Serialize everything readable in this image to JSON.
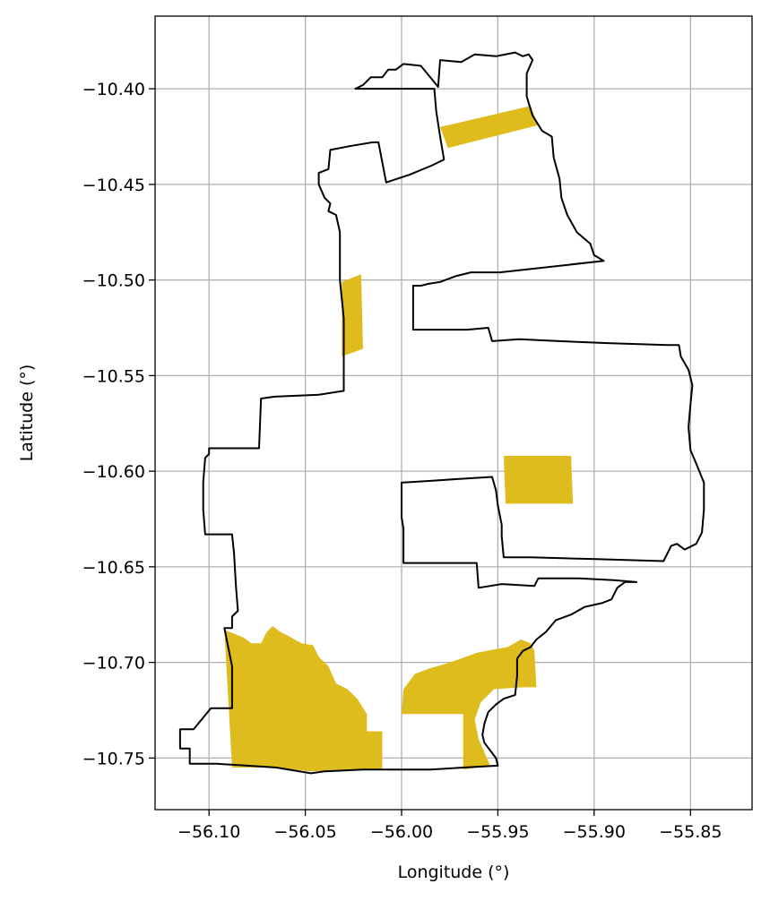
{
  "chart_data": {
    "type": "map",
    "title": "",
    "xlabel": "Longitude (°)",
    "ylabel": "Latitude (°)",
    "xlim": [
      -56.128,
      -55.818
    ],
    "ylim": [
      -10.777,
      -10.362
    ],
    "x_ticks": [
      -56.1,
      -56.05,
      -56.0,
      -55.95,
      -55.9,
      -55.85
    ],
    "x_tick_labels": [
      "−56.10",
      "−56.05",
      "−56.00",
      "−55.95",
      "−55.90",
      "−55.85"
    ],
    "y_ticks": [
      -10.4,
      -10.45,
      -10.5,
      -10.55,
      -10.6,
      -10.65,
      -10.7,
      -10.75
    ],
    "y_tick_labels": [
      "−10.40",
      "−10.45",
      "−10.50",
      "−10.55",
      "−10.60",
      "−10.65",
      "−10.70",
      "−10.75"
    ],
    "grid": true,
    "colors": {
      "fill": "#dfbc1e",
      "boundary": "#000000",
      "grid": "#b0b0b0"
    },
    "boundary": [
      [
        -55.981,
        -10.399
      ],
      [
        -55.98,
        -10.385
      ],
      [
        -55.969,
        -10.386
      ],
      [
        -55.962,
        -10.382
      ],
      [
        -55.951,
        -10.383
      ],
      [
        -55.941,
        -10.381
      ],
      [
        -55.937,
        -10.383
      ],
      [
        -55.934,
        -10.382
      ],
      [
        -55.932,
        -10.385
      ],
      [
        -55.935,
        -10.392
      ],
      [
        -55.935,
        -10.404
      ],
      [
        -55.932,
        -10.414
      ],
      [
        -55.927,
        -10.422
      ],
      [
        -55.922,
        -10.425
      ],
      [
        -55.921,
        -10.436
      ],
      [
        -55.918,
        -10.447
      ],
      [
        -55.917,
        -10.457
      ],
      [
        -55.914,
        -10.466
      ],
      [
        -55.909,
        -10.475
      ],
      [
        -55.902,
        -10.481
      ],
      [
        -55.9,
        -10.487
      ],
      [
        -55.895,
        -10.49
      ],
      [
        -55.949,
        -10.496
      ],
      [
        -55.964,
        -10.496
      ],
      [
        -55.972,
        -10.498
      ],
      [
        -55.98,
        -10.501
      ],
      [
        -55.986,
        -10.502
      ],
      [
        -55.99,
        -10.503
      ],
      [
        -55.994,
        -10.503
      ],
      [
        -55.994,
        -10.526
      ],
      [
        -55.966,
        -10.526
      ],
      [
        -55.955,
        -10.525
      ],
      [
        -55.953,
        -10.532
      ],
      [
        -55.939,
        -10.531
      ],
      [
        -55.918,
        -10.532
      ],
      [
        -55.893,
        -10.533
      ],
      [
        -55.862,
        -10.534
      ],
      [
        -55.856,
        -10.534
      ],
      [
        -55.855,
        -10.54
      ],
      [
        -55.851,
        -10.547
      ],
      [
        -55.849,
        -10.555
      ],
      [
        -55.85,
        -10.565
      ],
      [
        -55.851,
        -10.577
      ],
      [
        -55.85,
        -10.589
      ],
      [
        -55.847,
        -10.596
      ],
      [
        -55.843,
        -10.606
      ],
      [
        -55.843,
        -10.62
      ],
      [
        -55.844,
        -10.632
      ],
      [
        -55.847,
        -10.638
      ],
      [
        -55.853,
        -10.641
      ],
      [
        -55.857,
        -10.638
      ],
      [
        -55.86,
        -10.639
      ],
      [
        -55.864,
        -10.647
      ],
      [
        -55.899,
        -10.646
      ],
      [
        -55.933,
        -10.645
      ],
      [
        -55.947,
        -10.645
      ],
      [
        -55.948,
        -10.634
      ],
      [
        -55.948,
        -10.628
      ],
      [
        -55.95,
        -10.618
      ],
      [
        -55.951,
        -10.61
      ],
      [
        -55.953,
        -10.603
      ],
      [
        -55.97,
        -10.604
      ],
      [
        -55.984,
        -10.605
      ],
      [
        -56.0,
        -10.606
      ],
      [
        -56.0,
        -10.624
      ],
      [
        -55.999,
        -10.63
      ],
      [
        -55.999,
        -10.648
      ],
      [
        -55.961,
        -10.648
      ],
      [
        -55.96,
        -10.661
      ],
      [
        -55.948,
        -10.659
      ],
      [
        -55.931,
        -10.66
      ],
      [
        -55.929,
        -10.656
      ],
      [
        -55.908,
        -10.656
      ],
      [
        -55.89,
        -10.657
      ],
      [
        -55.878,
        -10.658
      ],
      [
        -55.884,
        -10.658
      ],
      [
        -55.888,
        -10.661
      ],
      [
        -55.891,
        -10.667
      ],
      [
        -55.896,
        -10.669
      ],
      [
        -55.905,
        -10.671
      ],
      [
        -55.912,
        -10.675
      ],
      [
        -55.92,
        -10.678
      ],
      [
        -55.925,
        -10.684
      ],
      [
        -55.93,
        -10.688
      ],
      [
        -55.933,
        -10.692
      ],
      [
        -55.937,
        -10.694
      ],
      [
        -55.94,
        -10.698
      ],
      [
        -55.94,
        -10.707
      ],
      [
        -55.941,
        -10.717
      ],
      [
        -55.947,
        -10.719
      ],
      [
        -55.951,
        -10.722
      ],
      [
        -55.955,
        -10.726
      ],
      [
        -55.957,
        -10.732
      ],
      [
        -55.958,
        -10.738
      ],
      [
        -55.957,
        -10.742
      ],
      [
        -55.954,
        -10.746
      ],
      [
        -55.951,
        -10.75
      ],
      [
        -55.95,
        -10.754
      ],
      [
        -55.968,
        -10.755
      ],
      [
        -55.985,
        -10.756
      ],
      [
        -56.002,
        -10.756
      ],
      [
        -56.02,
        -10.756
      ],
      [
        -56.04,
        -10.757
      ],
      [
        -56.047,
        -10.758
      ],
      [
        -56.065,
        -10.755
      ],
      [
        -56.08,
        -10.754
      ],
      [
        -56.096,
        -10.753
      ],
      [
        -56.11,
        -10.753
      ],
      [
        -56.11,
        -10.745
      ],
      [
        -56.115,
        -10.745
      ],
      [
        -56.115,
        -10.735
      ],
      [
        -56.108,
        -10.735
      ],
      [
        -56.099,
        -10.724
      ],
      [
        -56.088,
        -10.724
      ],
      [
        -56.088,
        -10.702
      ],
      [
        -56.092,
        -10.682
      ],
      [
        -56.088,
        -10.682
      ],
      [
        -56.088,
        -10.676
      ],
      [
        -56.085,
        -10.673
      ],
      [
        -56.086,
        -10.66
      ],
      [
        -56.087,
        -10.643
      ],
      [
        -56.088,
        -10.633
      ],
      [
        -56.096,
        -10.633
      ],
      [
        -56.102,
        -10.633
      ],
      [
        -56.103,
        -10.62
      ],
      [
        -56.103,
        -10.606
      ],
      [
        -56.102,
        -10.593
      ],
      [
        -56.1,
        -10.591
      ],
      [
        -56.1,
        -10.588
      ],
      [
        -56.074,
        -10.588
      ],
      [
        -56.073,
        -10.562
      ],
      [
        -56.066,
        -10.561
      ],
      [
        -56.043,
        -10.56
      ],
      [
        -56.03,
        -10.558
      ],
      [
        -56.03,
        -10.54
      ],
      [
        -56.03,
        -10.52
      ],
      [
        -56.032,
        -10.5
      ],
      [
        -56.032,
        -10.475
      ],
      [
        -56.034,
        -10.466
      ],
      [
        -56.038,
        -10.464
      ],
      [
        -56.037,
        -10.46
      ],
      [
        -56.04,
        -10.457
      ],
      [
        -56.043,
        -10.45
      ],
      [
        -56.043,
        -10.444
      ],
      [
        -56.038,
        -10.442
      ],
      [
        -56.037,
        -10.432
      ],
      [
        -56.027,
        -10.43
      ],
      [
        -56.015,
        -10.428
      ],
      [
        -56.012,
        -10.428
      ],
      [
        -56.008,
        -10.449
      ],
      [
        -55.996,
        -10.445
      ],
      [
        -55.984,
        -10.44
      ],
      [
        -55.978,
        -10.437
      ],
      [
        -55.98,
        -10.425
      ],
      [
        -55.982,
        -10.412
      ],
      [
        -55.983,
        -10.4
      ],
      [
        -56.0,
        -10.4
      ],
      [
        -56.01,
        -10.4
      ],
      [
        -56.018,
        -10.4
      ],
      [
        -56.024,
        -10.4
      ],
      [
        -56.02,
        -10.398
      ],
      [
        -56.016,
        -10.394
      ],
      [
        -56.01,
        -10.394
      ],
      [
        -56.007,
        -10.39
      ],
      [
        -56.003,
        -10.39
      ],
      [
        -55.999,
        -10.387
      ],
      [
        -55.99,
        -10.388
      ],
      [
        -55.981,
        -10.399
      ]
    ],
    "shaded_regions": [
      {
        "name": "northern-band",
        "coords": [
          [
            -55.98,
            -10.42
          ],
          [
            -55.933,
            -10.409
          ],
          [
            -55.929,
            -10.419
          ],
          [
            -55.976,
            -10.431
          ]
        ]
      },
      {
        "name": "western-strip",
        "coords": [
          [
            -56.031,
            -10.501
          ],
          [
            -56.021,
            -10.497
          ],
          [
            -56.02,
            -10.536
          ],
          [
            -56.031,
            -10.54
          ]
        ]
      },
      {
        "name": "eastern-block",
        "coords": [
          [
            -55.947,
            -10.592
          ],
          [
            -55.912,
            -10.592
          ],
          [
            -55.911,
            -10.617
          ],
          [
            -55.946,
            -10.617
          ]
        ]
      },
      {
        "name": "southwest-cluster",
        "coords": [
          [
            -56.092,
            -10.683
          ],
          [
            -56.082,
            -10.687
          ],
          [
            -56.078,
            -10.69
          ],
          [
            -56.073,
            -10.69
          ],
          [
            -56.07,
            -10.684
          ],
          [
            -56.067,
            -10.681
          ],
          [
            -56.063,
            -10.684
          ],
          [
            -56.059,
            -10.686
          ],
          [
            -56.052,
            -10.69
          ],
          [
            -56.046,
            -10.691
          ],
          [
            -56.043,
            -10.697
          ],
          [
            -56.038,
            -10.702
          ],
          [
            -56.034,
            -10.711
          ],
          [
            -56.028,
            -10.714
          ],
          [
            -56.023,
            -10.719
          ],
          [
            -56.018,
            -10.727
          ],
          [
            -56.018,
            -10.736
          ],
          [
            -56.024,
            -10.736
          ],
          [
            -56.024,
            -10.756
          ],
          [
            -56.047,
            -10.757
          ],
          [
            -56.065,
            -10.755
          ],
          [
            -56.088,
            -10.755
          ]
        ]
      },
      {
        "name": "southwest-block",
        "coords": [
          [
            -56.025,
            -10.736
          ],
          [
            -56.01,
            -10.736
          ],
          [
            -56.01,
            -10.756
          ],
          [
            -56.025,
            -10.756
          ]
        ]
      },
      {
        "name": "southeast-cluster",
        "coords": [
          [
            -56.0,
            -10.727
          ],
          [
            -55.999,
            -10.714
          ],
          [
            -55.993,
            -10.706
          ],
          [
            -55.985,
            -10.703
          ],
          [
            -55.978,
            -10.701
          ],
          [
            -55.969,
            -10.698
          ],
          [
            -55.961,
            -10.695
          ],
          [
            -55.951,
            -10.693
          ],
          [
            -55.945,
            -10.692
          ],
          [
            -55.938,
            -10.688
          ],
          [
            -55.933,
            -10.69
          ],
          [
            -55.931,
            -10.694
          ],
          [
            -55.93,
            -10.713
          ],
          [
            -55.937,
            -10.713
          ],
          [
            -55.952,
            -10.714
          ],
          [
            -55.959,
            -10.721
          ],
          [
            -55.962,
            -10.73
          ],
          [
            -55.96,
            -10.74
          ],
          [
            -55.957,
            -10.747
          ],
          [
            -55.954,
            -10.754
          ],
          [
            -55.968,
            -10.756
          ],
          [
            -55.968,
            -10.727
          ]
        ]
      }
    ]
  }
}
